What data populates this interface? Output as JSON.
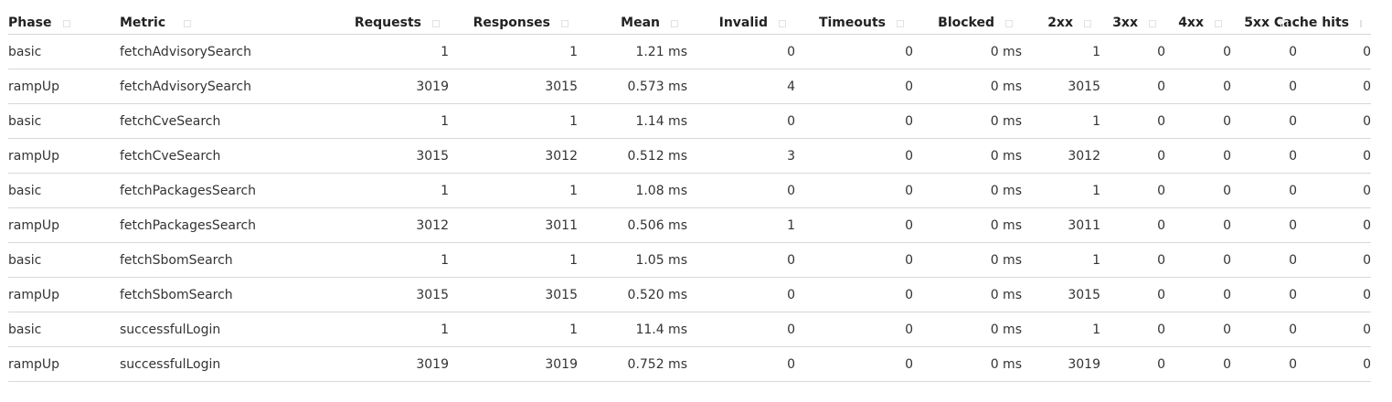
{
  "columns": [
    {
      "label": "Phase",
      "align": "left"
    },
    {
      "label": "Metric",
      "align": "left"
    },
    {
      "label": "Requests",
      "align": "right"
    },
    {
      "label": "Responses",
      "align": "right"
    },
    {
      "label": "Mean",
      "align": "right"
    },
    {
      "label": "Invalid",
      "align": "right"
    },
    {
      "label": "Timeouts",
      "align": "right"
    },
    {
      "label": "Blocked",
      "align": "right"
    },
    {
      "label": "2xx",
      "align": "right"
    },
    {
      "label": "3xx",
      "align": "right"
    },
    {
      "label": "4xx",
      "align": "right"
    },
    {
      "label": "5xx",
      "align": "right"
    },
    {
      "label": "Cache hits",
      "align": "right"
    }
  ],
  "sort_icon": "sort-icon",
  "rows": [
    [
      "basic",
      "fetchAdvisorySearch",
      "1",
      "1",
      "1.21 ms",
      "0",
      "0",
      "0 ms",
      "1",
      "0",
      "0",
      "0",
      "0"
    ],
    [
      "rampUp",
      "fetchAdvisorySearch",
      "3019",
      "3015",
      "0.573 ms",
      "4",
      "0",
      "0 ms",
      "3015",
      "0",
      "0",
      "0",
      "0"
    ],
    [
      "basic",
      "fetchCveSearch",
      "1",
      "1",
      "1.14 ms",
      "0",
      "0",
      "0 ms",
      "1",
      "0",
      "0",
      "0",
      "0"
    ],
    [
      "rampUp",
      "fetchCveSearch",
      "3015",
      "3012",
      "0.512 ms",
      "3",
      "0",
      "0 ms",
      "3012",
      "0",
      "0",
      "0",
      "0"
    ],
    [
      "basic",
      "fetchPackagesSearch",
      "1",
      "1",
      "1.08 ms",
      "0",
      "0",
      "0 ms",
      "1",
      "0",
      "0",
      "0",
      "0"
    ],
    [
      "rampUp",
      "fetchPackagesSearch",
      "3012",
      "3011",
      "0.506 ms",
      "1",
      "0",
      "0 ms",
      "3011",
      "0",
      "0",
      "0",
      "0"
    ],
    [
      "basic",
      "fetchSbomSearch",
      "1",
      "1",
      "1.05 ms",
      "0",
      "0",
      "0 ms",
      "1",
      "0",
      "0",
      "0",
      "0"
    ],
    [
      "rampUp",
      "fetchSbomSearch",
      "3015",
      "3015",
      "0.520 ms",
      "0",
      "0",
      "0 ms",
      "3015",
      "0",
      "0",
      "0",
      "0"
    ],
    [
      "basic",
      "successfulLogin",
      "1",
      "1",
      "11.4 ms",
      "0",
      "0",
      "0 ms",
      "1",
      "0",
      "0",
      "0",
      "0"
    ],
    [
      "rampUp",
      "successfulLogin",
      "3019",
      "3019",
      "0.752 ms",
      "0",
      "0",
      "0 ms",
      "3019",
      "0",
      "0",
      "0",
      "0"
    ]
  ]
}
